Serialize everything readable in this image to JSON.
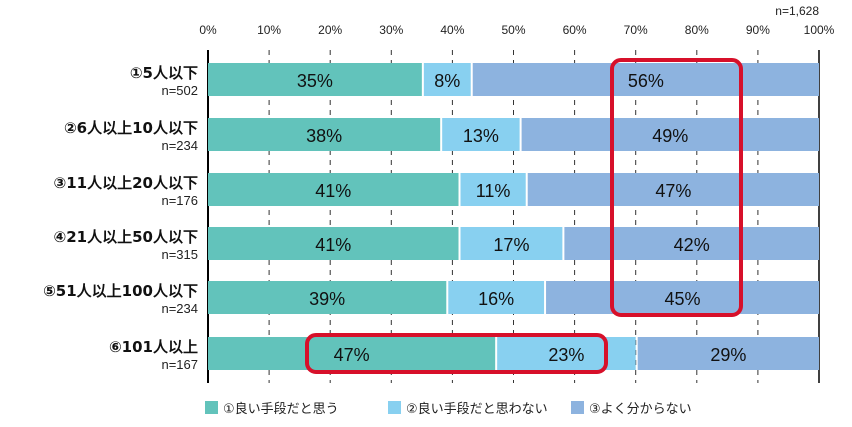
{
  "chart_data": {
    "type": "bar",
    "orientation": "horizontal",
    "stacked": true,
    "sample_note": "n=1,628",
    "xlim": [
      0,
      100
    ],
    "xticks": [
      "0%",
      "10%",
      "20%",
      "30%",
      "40%",
      "50%",
      "60%",
      "70%",
      "80%",
      "90%",
      "100%"
    ],
    "grid": "vertical dashed",
    "legend_position": "bottom",
    "categories": [
      {
        "label": "①5人以下",
        "n": "n=502"
      },
      {
        "label": "②6人以上10人以下",
        "n": "n=234"
      },
      {
        "label": "③11人以上20人以下",
        "n": "n=176"
      },
      {
        "label": "④21人以上50人以下",
        "n": "n=315"
      },
      {
        "label": "⑤51人以上100人以下",
        "n": "n=234"
      },
      {
        "label": "⑥101人以上",
        "n": "n=167"
      }
    ],
    "series": [
      {
        "name": "①良い手段だと思う",
        "color": "#62c3bb",
        "values": [
          35,
          38,
          41,
          41,
          39,
          47
        ]
      },
      {
        "name": "②良い手段だと思わない",
        "color": "#88d0f0",
        "values": [
          8,
          13,
          11,
          17,
          16,
          23
        ]
      },
      {
        "name": "③よく分からない",
        "color": "#8db3df",
        "values": [
          56,
          49,
          47,
          42,
          45,
          29
        ]
      }
    ],
    "highlights": [
      {
        "color": "#d7102a",
        "series": "③よく分からない",
        "categories": "①-⑤"
      },
      {
        "color": "#d7102a",
        "series": "①②",
        "categories": "⑥"
      }
    ]
  }
}
